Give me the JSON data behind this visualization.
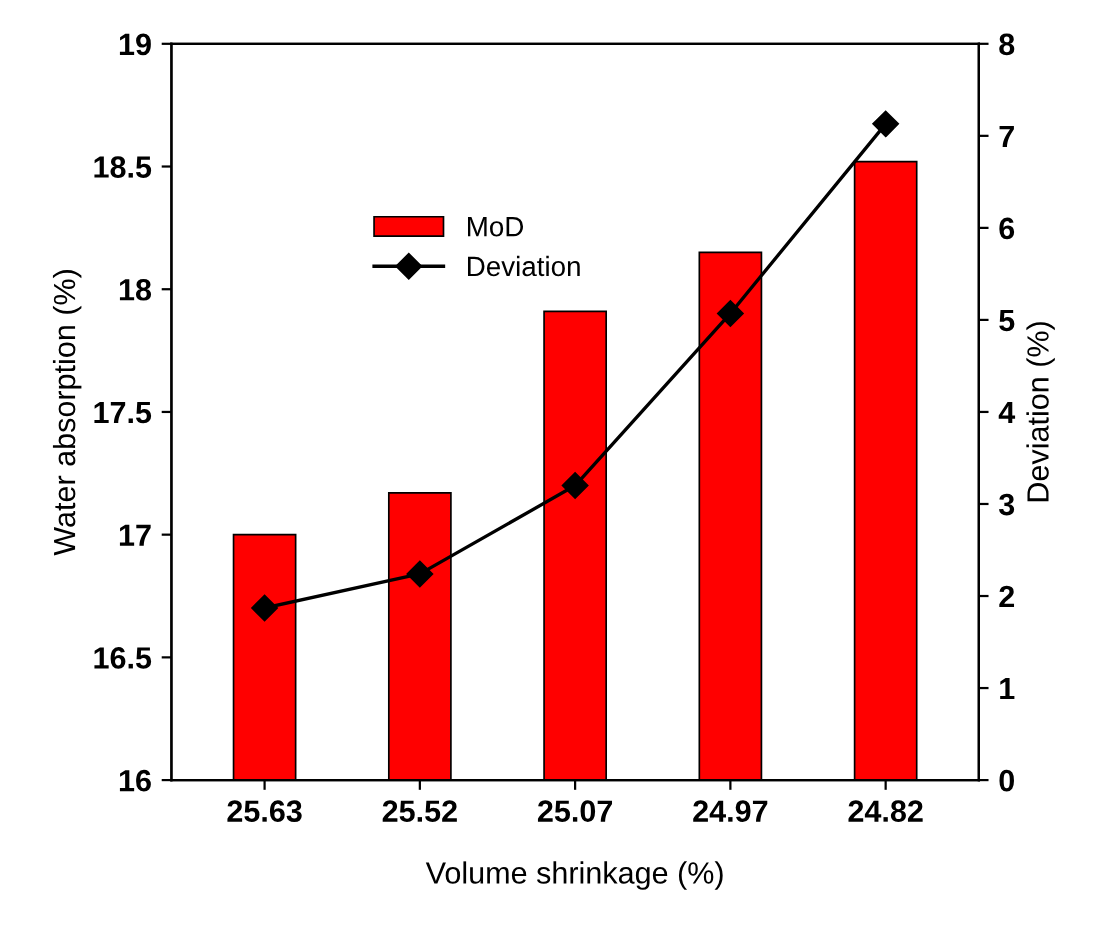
{
  "chart_data": {
    "type": "bar",
    "categories": [
      "25.63",
      "25.52",
      "25.07",
      "24.97",
      "24.82"
    ],
    "xlabel": "Volume shrinkage (%)",
    "ylabel": "Water absorption (%)",
    "y2label": "Deviation (%)",
    "series": [
      {
        "name": "MoD",
        "color": "#ff0000",
        "values": [
          17.0,
          17.17,
          17.91,
          18.15,
          18.52
        ]
      },
      {
        "name": "Deviation",
        "type": "line",
        "axis": "y2",
        "color": "#000000",
        "marker": "diamond",
        "values": [
          1.87,
          2.24,
          3.2,
          5.07,
          7.13
        ]
      }
    ],
    "ylim": [
      16,
      19
    ],
    "yticks": [
      16,
      16.5,
      17,
      17.5,
      18,
      18.5,
      19
    ],
    "y2lim": [
      0,
      8
    ],
    "y2ticks": [
      0,
      1,
      2,
      3,
      4,
      5,
      6,
      7,
      8
    ],
    "legend": "top left",
    "grid": false
  }
}
